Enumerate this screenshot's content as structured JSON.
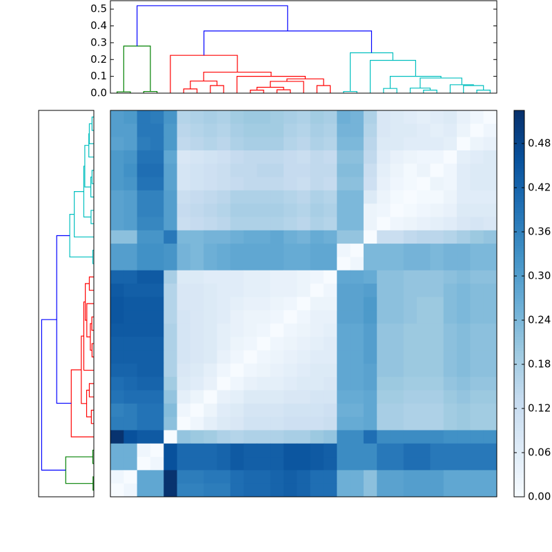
{
  "chart_data": {
    "type": "clustermap",
    "colormap": "Blues",
    "clim": [
      0,
      0.525
    ],
    "cticks": [
      {
        "value": 0,
        "label": "0.00"
      },
      0.06,
      0.12,
      0.18,
      0.24,
      {
        "value": 0.3,
        "label": "0.30"
      },
      0.36,
      0.42,
      0.48
    ],
    "dendrogram": {
      "ylim": [
        0,
        0.55
      ],
      "yticks": [
        {
          "value": 0,
          "label": "0.0"
        },
        0.1,
        0.2,
        0.3,
        0.4,
        0.5
      ],
      "links": [
        {
          "x": [
            0,
            0,
            1,
            1
          ],
          "y": [
            0,
            0.008,
            0.008,
            0
          ],
          "color": "#008000"
        },
        {
          "x": [
            2,
            2,
            3,
            3
          ],
          "y": [
            0,
            0.01,
            0.01,
            0
          ],
          "color": "#008000"
        },
        {
          "x": [
            0.5,
            0.5,
            2.5,
            2.5
          ],
          "y": [
            0.008,
            0.28,
            0.28,
            0.01
          ],
          "color": "#008000"
        },
        {
          "x": [
            5,
            5,
            6,
            6
          ],
          "y": [
            0,
            0.025,
            0.025,
            0
          ],
          "color": "#ff0000"
        },
        {
          "x": [
            7,
            7,
            8,
            8
          ],
          "y": [
            0,
            0.045,
            0.045,
            0
          ],
          "color": "#ff0000"
        },
        {
          "x": [
            5.5,
            5.5,
            7.5,
            7.5
          ],
          "y": [
            0.025,
            0.072,
            0.072,
            0.045
          ],
          "color": "#ff0000"
        },
        {
          "x": [
            10,
            10,
            11,
            11
          ],
          "y": [
            0,
            0.018,
            0.018,
            0
          ],
          "color": "#ff0000"
        },
        {
          "x": [
            12,
            12,
            13,
            13
          ],
          "y": [
            0,
            0.02,
            0.02,
            0
          ],
          "color": "#ff0000"
        },
        {
          "x": [
            10.5,
            10.5,
            12.5,
            12.5
          ],
          "y": [
            0.018,
            0.035,
            0.035,
            0.02
          ],
          "color": "#ff0000"
        },
        {
          "x": [
            11.5,
            11.5,
            14,
            14
          ],
          "y": [
            0.035,
            0.07,
            0.07,
            0
          ],
          "color": "#ff0000"
        },
        {
          "x": [
            15,
            15,
            16,
            16
          ],
          "y": [
            0,
            0.045,
            0.045,
            0
          ],
          "color": "#ff0000"
        },
        {
          "x": [
            12.75,
            12.75,
            15.5,
            15.5
          ],
          "y": [
            0.07,
            0.085,
            0.085,
            0.045
          ],
          "color": "#ff0000"
        },
        {
          "x": [
            9,
            9,
            14.125,
            14.125
          ],
          "y": [
            0,
            0.1,
            0.1,
            0.085
          ],
          "color": "#ff0000"
        },
        {
          "x": [
            6.5,
            6.5,
            11.5625,
            11.5625
          ],
          "y": [
            0.072,
            0.125,
            0.125,
            0.1
          ],
          "color": "#ff0000"
        },
        {
          "x": [
            4,
            4,
            9.03,
            9.03
          ],
          "y": [
            0,
            0.225,
            0.225,
            0.125
          ],
          "color": "#ff0000"
        },
        {
          "x": [
            17,
            17,
            18,
            18
          ],
          "y": [
            0,
            0.01,
            0.01,
            0
          ],
          "color": "#00bfbf"
        },
        {
          "x": [
            20,
            20,
            21,
            21
          ],
          "y": [
            0,
            0.028,
            0.028,
            0
          ],
          "color": "#00bfbf"
        },
        {
          "x": [
            23,
            23,
            24,
            24
          ],
          "y": [
            0,
            0.018,
            0.018,
            0
          ],
          "color": "#00bfbf"
        },
        {
          "x": [
            22,
            22,
            23.5,
            23.5
          ],
          "y": [
            0,
            0.03,
            0.03,
            0.018
          ],
          "color": "#00bfbf"
        },
        {
          "x": [
            27,
            27,
            28,
            28
          ],
          "y": [
            0,
            0.018,
            0.018,
            0
          ],
          "color": "#00bfbf"
        },
        {
          "x": [
            26,
            26,
            27.5,
            27.5
          ],
          "y": [
            0,
            0.045,
            0.045,
            0.018
          ],
          "color": "#00bfbf"
        },
        {
          "x": [
            25,
            25,
            26.75,
            26.75
          ],
          "y": [
            0,
            0.05,
            0.05,
            0.045
          ],
          "color": "#00bfbf"
        },
        {
          "x": [
            22.75,
            22.75,
            25.875,
            25.875
          ],
          "y": [
            0.03,
            0.09,
            0.09,
            0.05
          ],
          "color": "#00bfbf"
        },
        {
          "x": [
            20.5,
            20.5,
            24.31,
            24.31
          ],
          "y": [
            0.028,
            0.1,
            0.1,
            0.09
          ],
          "color": "#00bfbf"
        },
        {
          "x": [
            19,
            19,
            22.41,
            22.41
          ],
          "y": [
            0,
            0.195,
            0.195,
            0.1
          ],
          "color": "#00bfbf"
        },
        {
          "x": [
            17.5,
            17.5,
            20.7,
            20.7
          ],
          "y": [
            0.01,
            0.24,
            0.24,
            0.195
          ],
          "color": "#00bfbf"
        },
        {
          "x": [
            6.52,
            6.52,
            19.1,
            19.1
          ],
          "y": [
            0.225,
            0.37,
            0.37,
            0.24
          ],
          "color": "#0000ff"
        },
        {
          "x": [
            1.5,
            1.5,
            12.8,
            12.8
          ],
          "y": [
            0.28,
            0.52,
            0.52,
            0.37
          ],
          "color": "#0000ff"
        }
      ]
    },
    "matrix": [
      [
        0.3,
        0.31,
        0.38,
        0.37,
        0.32,
        0.16,
        0.17,
        0.18,
        0.17,
        0.19,
        0.2,
        0.2,
        0.19,
        0.18,
        0.17,
        0.19,
        0.18,
        0.26,
        0.25,
        0.17,
        0.08,
        0.07,
        0.06,
        0.05,
        0.06,
        0.07,
        0.04,
        0.02,
        0.0
      ],
      [
        0.3,
        0.3,
        0.38,
        0.38,
        0.31,
        0.15,
        0.16,
        0.17,
        0.16,
        0.18,
        0.19,
        0.19,
        0.19,
        0.17,
        0.16,
        0.18,
        0.17,
        0.25,
        0.25,
        0.16,
        0.08,
        0.07,
        0.07,
        0.06,
        0.05,
        0.06,
        0.03,
        0.0,
        0.02
      ],
      [
        0.29,
        0.3,
        0.37,
        0.38,
        0.31,
        0.14,
        0.15,
        0.16,
        0.15,
        0.17,
        0.18,
        0.18,
        0.18,
        0.16,
        0.15,
        0.17,
        0.16,
        0.24,
        0.24,
        0.15,
        0.07,
        0.07,
        0.06,
        0.06,
        0.06,
        0.05,
        0.0,
        0.03,
        0.04
      ],
      [
        0.31,
        0.32,
        0.39,
        0.39,
        0.28,
        0.08,
        0.09,
        0.1,
        0.11,
        0.13,
        0.14,
        0.14,
        0.14,
        0.13,
        0.12,
        0.14,
        0.13,
        0.22,
        0.22,
        0.14,
        0.06,
        0.04,
        0.03,
        0.02,
        0.02,
        0.0,
        0.05,
        0.06,
        0.07
      ],
      [
        0.31,
        0.33,
        0.4,
        0.4,
        0.29,
        0.09,
        0.1,
        0.11,
        0.12,
        0.14,
        0.14,
        0.15,
        0.15,
        0.13,
        0.13,
        0.14,
        0.14,
        0.23,
        0.23,
        0.12,
        0.05,
        0.03,
        0.01,
        0.03,
        0.0,
        0.02,
        0.06,
        0.07,
        0.07
      ],
      [
        0.31,
        0.32,
        0.39,
        0.39,
        0.29,
        0.09,
        0.1,
        0.11,
        0.12,
        0.13,
        0.14,
        0.14,
        0.14,
        0.13,
        0.12,
        0.14,
        0.13,
        0.22,
        0.22,
        0.11,
        0.04,
        0.02,
        0.01,
        0.0,
        0.03,
        0.02,
        0.06,
        0.07,
        0.07
      ],
      [
        0.29,
        0.3,
        0.36,
        0.36,
        0.3,
        0.12,
        0.13,
        0.14,
        0.15,
        0.17,
        0.17,
        0.17,
        0.17,
        0.16,
        0.15,
        0.17,
        0.16,
        0.24,
        0.24,
        0.07,
        0.03,
        0.01,
        0.0,
        0.01,
        0.01,
        0.03,
        0.06,
        0.06,
        0.06
      ],
      [
        0.29,
        0.3,
        0.36,
        0.36,
        0.3,
        0.13,
        0.14,
        0.15,
        0.16,
        0.18,
        0.18,
        0.18,
        0.18,
        0.17,
        0.16,
        0.18,
        0.17,
        0.24,
        0.24,
        0.03,
        0.02,
        0.0,
        0.01,
        0.02,
        0.03,
        0.04,
        0.07,
        0.07,
        0.07
      ],
      [
        0.29,
        0.3,
        0.35,
        0.35,
        0.3,
        0.12,
        0.13,
        0.14,
        0.15,
        0.17,
        0.17,
        0.17,
        0.17,
        0.16,
        0.15,
        0.17,
        0.16,
        0.24,
        0.24,
        0.03,
        0.0,
        0.02,
        0.03,
        0.04,
        0.05,
        0.06,
        0.08,
        0.09,
        0.08
      ],
      [
        0.22,
        0.22,
        0.32,
        0.32,
        0.38,
        0.24,
        0.24,
        0.25,
        0.25,
        0.26,
        0.27,
        0.27,
        0.28,
        0.26,
        0.25,
        0.27,
        0.26,
        0.21,
        0.21,
        0.0,
        0.12,
        0.12,
        0.14,
        0.15,
        0.15,
        0.16,
        0.18,
        0.2,
        0.21
      ],
      [
        0.3,
        0.3,
        0.33,
        0.33,
        0.32,
        0.25,
        0.24,
        0.26,
        0.27,
        0.28,
        0.28,
        0.28,
        0.28,
        0.27,
        0.27,
        0.28,
        0.28,
        0.02,
        0.0,
        0.24,
        0.24,
        0.24,
        0.25,
        0.25,
        0.24,
        0.25,
        0.25,
        0.24,
        0.24
      ],
      [
        0.3,
        0.3,
        0.33,
        0.33,
        0.32,
        0.25,
        0.24,
        0.26,
        0.27,
        0.28,
        0.28,
        0.28,
        0.28,
        0.27,
        0.27,
        0.28,
        0.28,
        0.0,
        0.02,
        0.24,
        0.24,
        0.24,
        0.25,
        0.25,
        0.24,
        0.25,
        0.25,
        0.24,
        0.24
      ],
      [
        0.42,
        0.42,
        0.44,
        0.44,
        0.18,
        0.07,
        0.07,
        0.06,
        0.06,
        0.06,
        0.05,
        0.05,
        0.04,
        0.04,
        0.03,
        0.02,
        0.0,
        0.28,
        0.28,
        0.27,
        0.22,
        0.22,
        0.21,
        0.21,
        0.21,
        0.22,
        0.23,
        0.22,
        0.22
      ],
      [
        0.44,
        0.43,
        0.43,
        0.43,
        0.16,
        0.08,
        0.08,
        0.07,
        0.06,
        0.06,
        0.05,
        0.05,
        0.04,
        0.04,
        0.03,
        0.0,
        0.02,
        0.29,
        0.29,
        0.3,
        0.22,
        0.22,
        0.21,
        0.21,
        0.21,
        0.23,
        0.24,
        0.23,
        0.23
      ],
      [
        0.45,
        0.44,
        0.44,
        0.44,
        0.16,
        0.08,
        0.08,
        0.07,
        0.06,
        0.05,
        0.04,
        0.04,
        0.03,
        0.02,
        0.0,
        0.03,
        0.03,
        0.29,
        0.29,
        0.31,
        0.22,
        0.22,
        0.21,
        0.2,
        0.2,
        0.23,
        0.24,
        0.23,
        0.23
      ],
      [
        0.45,
        0.44,
        0.44,
        0.44,
        0.16,
        0.09,
        0.08,
        0.07,
        0.06,
        0.04,
        0.03,
        0.03,
        0.02,
        0.0,
        0.02,
        0.04,
        0.04,
        0.29,
        0.29,
        0.31,
        0.22,
        0.22,
        0.21,
        0.2,
        0.2,
        0.23,
        0.24,
        0.23,
        0.23
      ],
      [
        0.44,
        0.44,
        0.44,
        0.44,
        0.17,
        0.09,
        0.08,
        0.07,
        0.05,
        0.04,
        0.03,
        0.02,
        0.0,
        0.02,
        0.03,
        0.04,
        0.05,
        0.28,
        0.28,
        0.3,
        0.21,
        0.21,
        0.2,
        0.2,
        0.2,
        0.22,
        0.23,
        0.22,
        0.22
      ],
      [
        0.43,
        0.43,
        0.43,
        0.43,
        0.17,
        0.09,
        0.08,
        0.07,
        0.05,
        0.03,
        0.02,
        0.0,
        0.02,
        0.03,
        0.04,
        0.05,
        0.06,
        0.28,
        0.28,
        0.3,
        0.21,
        0.21,
        0.2,
        0.2,
        0.2,
        0.22,
        0.23,
        0.22,
        0.22
      ],
      [
        0.43,
        0.43,
        0.43,
        0.43,
        0.17,
        0.09,
        0.08,
        0.07,
        0.04,
        0.02,
        0.0,
        0.02,
        0.03,
        0.04,
        0.05,
        0.06,
        0.06,
        0.28,
        0.28,
        0.3,
        0.21,
        0.21,
        0.2,
        0.2,
        0.2,
        0.22,
        0.23,
        0.22,
        0.22
      ],
      [
        0.42,
        0.42,
        0.43,
        0.43,
        0.17,
        0.08,
        0.07,
        0.05,
        0.02,
        0.0,
        0.02,
        0.03,
        0.04,
        0.05,
        0.06,
        0.07,
        0.07,
        0.28,
        0.28,
        0.29,
        0.21,
        0.21,
        0.2,
        0.2,
        0.2,
        0.22,
        0.23,
        0.22,
        0.22
      ],
      [
        0.4,
        0.41,
        0.42,
        0.42,
        0.19,
        0.07,
        0.06,
        0.04,
        0.0,
        0.02,
        0.04,
        0.05,
        0.05,
        0.06,
        0.07,
        0.07,
        0.08,
        0.28,
        0.28,
        0.29,
        0.2,
        0.2,
        0.19,
        0.19,
        0.19,
        0.21,
        0.22,
        0.21,
        0.21
      ],
      [
        0.39,
        0.4,
        0.4,
        0.4,
        0.21,
        0.05,
        0.03,
        0.0,
        0.04,
        0.05,
        0.07,
        0.07,
        0.07,
        0.08,
        0.08,
        0.09,
        0.09,
        0.27,
        0.27,
        0.28,
        0.19,
        0.19,
        0.18,
        0.18,
        0.18,
        0.2,
        0.21,
        0.2,
        0.2
      ],
      [
        0.36,
        0.37,
        0.39,
        0.39,
        0.23,
        0.02,
        0.0,
        0.03,
        0.06,
        0.07,
        0.09,
        0.09,
        0.09,
        0.1,
        0.1,
        0.1,
        0.11,
        0.26,
        0.26,
        0.28,
        0.18,
        0.18,
        0.17,
        0.17,
        0.17,
        0.19,
        0.2,
        0.19,
        0.19
      ],
      [
        0.37,
        0.37,
        0.39,
        0.39,
        0.22,
        0.0,
        0.02,
        0.05,
        0.07,
        0.08,
        0.1,
        0.1,
        0.1,
        0.11,
        0.11,
        0.11,
        0.12,
        0.27,
        0.27,
        0.28,
        0.18,
        0.18,
        0.17,
        0.17,
        0.17,
        0.19,
        0.2,
        0.19,
        0.19
      ],
      [
        0.52,
        0.46,
        0.44,
        0.44,
        0.0,
        0.21,
        0.2,
        0.19,
        0.17,
        0.16,
        0.17,
        0.17,
        0.17,
        0.18,
        0.18,
        0.2,
        0.21,
        0.34,
        0.34,
        0.4,
        0.34,
        0.34,
        0.34,
        0.34,
        0.34,
        0.33,
        0.33,
        0.33,
        0.33
      ],
      [
        0.26,
        0.26,
        0.02,
        0.0,
        0.46,
        0.41,
        0.41,
        0.41,
        0.42,
        0.44,
        0.43,
        0.43,
        0.43,
        0.45,
        0.45,
        0.44,
        0.43,
        0.34,
        0.34,
        0.34,
        0.38,
        0.38,
        0.4,
        0.4,
        0.38,
        0.38,
        0.38,
        0.38,
        0.38
      ],
      [
        0.26,
        0.26,
        0.0,
        0.02,
        0.46,
        0.41,
        0.41,
        0.41,
        0.42,
        0.44,
        0.43,
        0.43,
        0.43,
        0.45,
        0.45,
        0.44,
        0.43,
        0.34,
        0.34,
        0.34,
        0.38,
        0.38,
        0.4,
        0.4,
        0.38,
        0.38,
        0.38,
        0.38,
        0.38
      ],
      [
        0.02,
        0.0,
        0.28,
        0.28,
        0.52,
        0.37,
        0.37,
        0.38,
        0.38,
        0.4,
        0.41,
        0.41,
        0.42,
        0.43,
        0.42,
        0.4,
        0.4,
        0.26,
        0.26,
        0.22,
        0.29,
        0.29,
        0.3,
        0.3,
        0.3,
        0.28,
        0.28,
        0.28,
        0.28
      ],
      [
        0.0,
        0.02,
        0.28,
        0.28,
        0.52,
        0.36,
        0.36,
        0.37,
        0.37,
        0.4,
        0.41,
        0.41,
        0.42,
        0.43,
        0.42,
        0.4,
        0.4,
        0.26,
        0.26,
        0.22,
        0.29,
        0.29,
        0.3,
        0.3,
        0.3,
        0.28,
        0.28,
        0.28,
        0.28
      ]
    ]
  }
}
